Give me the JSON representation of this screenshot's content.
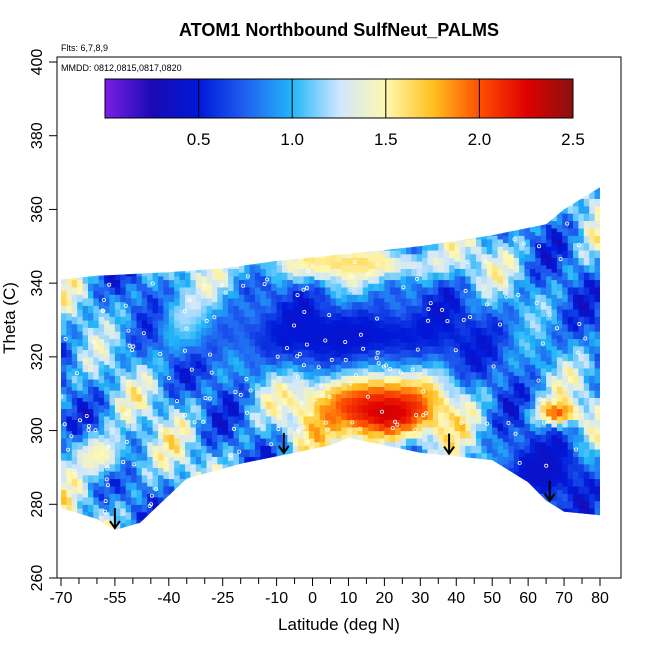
{
  "chart_data": {
    "type": "heatmap",
    "title": "ATOM1 Northbound SulfNeut_PALMS",
    "annotations": [
      "Flts: 6,7,8,9",
      "MMDD: 0812,0815,0817,0820"
    ],
    "xlabel": "Latitude (deg N)",
    "ylabel": "Theta (C)",
    "xlim": [
      -70,
      80
    ],
    "ylim": [
      260,
      400
    ],
    "x_ticks": [
      -70,
      -55,
      -40,
      -25,
      -10,
      0,
      10,
      20,
      30,
      40,
      50,
      60,
      70,
      80
    ],
    "x_minor_ticks": [
      -65,
      -60,
      -50,
      -45,
      -35,
      -30,
      -20,
      -15,
      -5,
      5,
      15,
      25,
      35,
      45,
      55,
      65,
      75
    ],
    "y_ticks": [
      260,
      280,
      300,
      320,
      340,
      360,
      380,
      400
    ],
    "colorbar": {
      "range": [
        0,
        2.5
      ],
      "ticks": [
        0.5,
        1.0,
        1.5,
        2.0,
        2.5
      ],
      "tick_labels": [
        "0.5",
        "1.0",
        "1.5",
        "2.0",
        "2.5"
      ],
      "stops": [
        {
          "v": 0.0,
          "color": "#7b1fe6"
        },
        {
          "v": 0.25,
          "color": "#1a0ab4"
        },
        {
          "v": 0.5,
          "color": "#0018d8"
        },
        {
          "v": 0.75,
          "color": "#2060f0"
        },
        {
          "v": 1.0,
          "color": "#22b6f8"
        },
        {
          "v": 1.25,
          "color": "#cfe6ff"
        },
        {
          "v": 1.5,
          "color": "#fff8b0"
        },
        {
          "v": 1.75,
          "color": "#ffc020"
        },
        {
          "v": 2.0,
          "color": "#ff5000"
        },
        {
          "v": 2.25,
          "color": "#e00000"
        },
        {
          "v": 2.5,
          "color": "#8a1010"
        }
      ]
    },
    "field_extent": {
      "lat": [
        -70,
        80
      ],
      "top_theta": [
        [
          -70,
          341
        ],
        [
          -60,
          342
        ],
        [
          -40,
          343
        ],
        [
          -25,
          344
        ],
        [
          -10,
          346
        ],
        [
          10,
          348
        ],
        [
          30,
          350
        ],
        [
          50,
          353
        ],
        [
          65,
          356
        ],
        [
          70,
          360
        ],
        [
          75,
          363
        ],
        [
          80,
          366
        ]
      ],
      "bottom_theta": [
        [
          -70,
          279
        ],
        [
          -60,
          276
        ],
        [
          -55,
          273
        ],
        [
          -48,
          275
        ],
        [
          -35,
          287
        ],
        [
          -20,
          291
        ],
        [
          -5,
          294
        ],
        [
          5,
          296
        ],
        [
          10,
          298
        ],
        [
          20,
          296
        ],
        [
          30,
          294
        ],
        [
          40,
          293
        ],
        [
          50,
          292
        ],
        [
          60,
          286
        ],
        [
          65,
          281
        ],
        [
          70,
          278
        ],
        [
          80,
          277
        ]
      ]
    },
    "regions": [
      {
        "lat": [
          -10,
          40
        ],
        "theta": [
          294,
          322
        ],
        "value": 2.2
      },
      {
        "lat": [
          5,
          35
        ],
        "theta": [
          296,
          315
        ],
        "value": 2.4
      },
      {
        "lat": [
          -45,
          -25
        ],
        "theta": [
          318,
          338
        ],
        "value": 1.8
      },
      {
        "lat": [
          -25,
          45
        ],
        "theta": [
          338,
          350
        ],
        "value": 1.7
      },
      {
        "lat": [
          -60,
          80
        ],
        "theta": [
          310,
          340
        ],
        "value": 0.45
      },
      {
        "lat": [
          45,
          80
        ],
        "theta": [
          276,
          300
        ],
        "value": 0.4
      },
      {
        "lat": [
          -70,
          -50
        ],
        "theta": [
          285,
          300
        ],
        "value": 1.5
      },
      {
        "lat": [
          60,
          75
        ],
        "theta": [
          300,
          308
        ],
        "value": 2.0
      }
    ],
    "arrow_markers_lat": [
      -55,
      -8,
      38,
      66
    ]
  }
}
